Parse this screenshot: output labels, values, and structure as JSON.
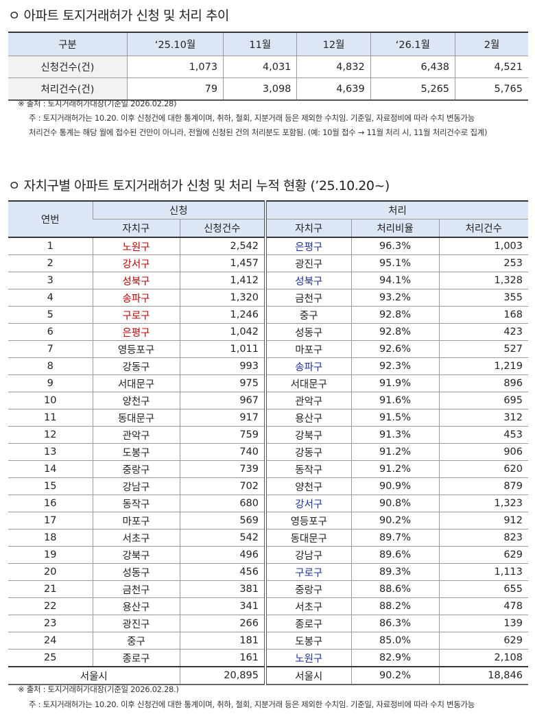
{
  "section1": {
    "title": "ㅇ 아파트 토지거래허가 신청 및 처리 추이",
    "headers": [
      "구분",
      "‘25.10월",
      "11월",
      "12월",
      "‘26.1월",
      "2월"
    ],
    "rows": [
      {
        "label": "신청건수(건)",
        "values": [
          "1,073",
          "4,031",
          "4,832",
          "6,438",
          "4,521"
        ]
      },
      {
        "label": "처리건수(건)",
        "values": [
          "79",
          "3,098",
          "4,639",
          "5,265",
          "5,765"
        ]
      }
    ],
    "source": "※ 출처 : 토지거래허가대장(기준일 2026.02.28)",
    "note1": "주 : 토지거래허가는 10.20. 이후 신청건에 대한 통계이며, 취하, 철회, 지분거래 등은 제외한 수치임. 기준일, 자료정비에 따라 수치 변동가능",
    "note2": "처리건수 통계는 해당 월에 접수된 건만이 아니라, 전월에 신청된 건의 처리분도 포함됨. (예: 10월 접수 → 11월 처리 시, 11월 처리건수로 집계)"
  },
  "section2": {
    "title": "ㅇ 자치구별 아파트 토지거래허가 신청 및 처리 누적 현황 (’25.10.20~)",
    "headers": {
      "no": "연번",
      "apply": "신청",
      "process": "처리",
      "district": "자치구",
      "apply_count": "신청건수",
      "district2": "자치구",
      "ratio": "처리비율",
      "process_count": "처리건수"
    },
    "rows": [
      [
        "1",
        "노원구",
        "2,542",
        "은평구",
        "96.3%",
        "1,003"
      ],
      [
        "2",
        "강서구",
        "1,457",
        "광진구",
        "95.1%",
        "253"
      ],
      [
        "3",
        "성북구",
        "1,412",
        "성북구",
        "94.1%",
        "1,328"
      ],
      [
        "4",
        "송파구",
        "1,320",
        "금천구",
        "93.2%",
        "355"
      ],
      [
        "5",
        "구로구",
        "1,246",
        "중구",
        "92.8%",
        "168"
      ],
      [
        "6",
        "은평구",
        "1,042",
        "성동구",
        "92.8%",
        "423"
      ],
      [
        "7",
        "영등포구",
        "1,011",
        "마포구",
        "92.6%",
        "527"
      ],
      [
        "8",
        "강동구",
        "993",
        "송파구",
        "92.3%",
        "1,219"
      ],
      [
        "9",
        "서대문구",
        "975",
        "서대문구",
        "91.9%",
        "896"
      ],
      [
        "10",
        "양천구",
        "967",
        "관악구",
        "91.6%",
        "695"
      ],
      [
        "11",
        "동대문구",
        "917",
        "용산구",
        "91.5%",
        "312"
      ],
      [
        "12",
        "관악구",
        "759",
        "강북구",
        "91.3%",
        "453"
      ],
      [
        "13",
        "도봉구",
        "740",
        "강동구",
        "91.2%",
        "906"
      ],
      [
        "14",
        "중랑구",
        "739",
        "동작구",
        "91.2%",
        "620"
      ],
      [
        "15",
        "강남구",
        "702",
        "양천구",
        "90.9%",
        "879"
      ],
      [
        "16",
        "동작구",
        "680",
        "강서구",
        "90.8%",
        "1,323"
      ],
      [
        "17",
        "마포구",
        "569",
        "영등포구",
        "90.2%",
        "912"
      ],
      [
        "18",
        "서초구",
        "542",
        "동대문구",
        "89.7%",
        "823"
      ],
      [
        "19",
        "강북구",
        "496",
        "강남구",
        "89.6%",
        "629"
      ],
      [
        "20",
        "성동구",
        "456",
        "구로구",
        "89.3%",
        "1,113"
      ],
      [
        "21",
        "금천구",
        "381",
        "중랑구",
        "88.6%",
        "655"
      ],
      [
        "22",
        "용산구",
        "341",
        "서초구",
        "88.2%",
        "478"
      ],
      [
        "23",
        "광진구",
        "266",
        "종로구",
        "86.3%",
        "139"
      ],
      [
        "24",
        "중구",
        "181",
        "도봉구",
        "85.0%",
        "629"
      ],
      [
        "25",
        "종로구",
        "161",
        "노원구",
        "82.9%",
        "2,108"
      ]
    ],
    "highlight_apply": [
      "노원구",
      "강서구",
      "성북구",
      "송파구",
      "구로구",
      "은평구"
    ],
    "highlight_process": [
      "은평구",
      "성북구",
      "송파구",
      "강서구",
      "구로구",
      "노원구"
    ],
    "highlight_colors": {
      "apply": "#c00000",
      "process": "#1f2f9f"
    },
    "total": {
      "label": "서울시",
      "apply_count": "20,895",
      "district": "서울시",
      "ratio": "90.2%",
      "process_count": "18,846"
    },
    "source": "※ 출처 : 토지거래허가대장(기준일 2026.02.28.)",
    "note1": "주 : 토지거래허가는 10.20. 이후 신청건에 대한 통계이며, 취하, 철회, 지분거래 등은 제외한 수치임. 기준일, 자료정비에 따라 수치 변동가능"
  }
}
